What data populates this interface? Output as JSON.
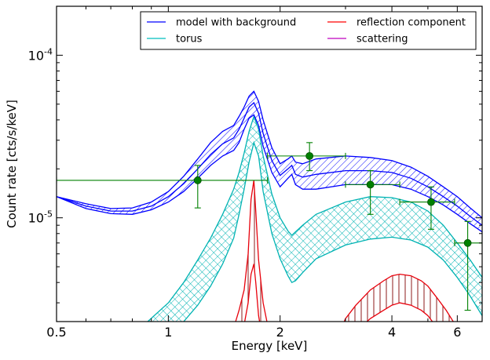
{
  "chart_data": {
    "type": "line",
    "title": "",
    "xlabel": "Energy [keV]",
    "ylabel": "Count rate [cts/s/keV]",
    "xscale": "log",
    "yscale": "log",
    "xlim": [
      0.5,
      7.0
    ],
    "ylim": [
      2.3e-06,
      0.0002
    ],
    "xticks": [
      {
        "value": 0.5,
        "label": "0.5"
      },
      {
        "value": 1,
        "label": "1"
      },
      {
        "value": 2,
        "label": "2"
      },
      {
        "value": 4,
        "label": "4"
      },
      {
        "value": 6,
        "label": "6"
      }
    ],
    "yticks": [
      {
        "value": 1e-05,
        "base": "10",
        "exp": "-5"
      },
      {
        "value": 0.0001,
        "base": "10",
        "exp": "-4"
      }
    ],
    "legend_position": "top-right",
    "legend": [
      {
        "label": "model with background",
        "color": "#0000ff"
      },
      {
        "label": "reflection component",
        "color": "#ff0000"
      },
      {
        "label": "torus",
        "color": "#00bfbf"
      },
      {
        "label": "scattering",
        "color": "#bf00bf"
      }
    ],
    "colors": {
      "model": "#0000ff",
      "torus": "#00b3b3",
      "reflection": "#e8000b",
      "reflection_fill": "#a04040",
      "data": "#008000",
      "scattering": "#bf00bf"
    },
    "series": [
      {
        "name": "model with background",
        "x": [
          0.5,
          0.6,
          0.7,
          0.8,
          0.9,
          1.0,
          1.1,
          1.2,
          1.3,
          1.4,
          1.5,
          1.55,
          1.6,
          1.65,
          1.7,
          1.75,
          1.8,
          1.9,
          2.0,
          2.1,
          2.15,
          2.2,
          2.3,
          2.5,
          3.0,
          3.5,
          4.0,
          4.5,
          5.0,
          5.5,
          6.0,
          6.5,
          7.0
        ],
        "upper": [
          1.35e-05,
          1.22e-05,
          1.14e-05,
          1.15e-05,
          1.25e-05,
          1.45e-05,
          1.8e-05,
          2.3e-05,
          2.9e-05,
          3.4e-05,
          3.7e-05,
          4.2e-05,
          4.8e-05,
          5.6e-05,
          6e-05,
          5.2e-05,
          4e-05,
          2.7e-05,
          2.15e-05,
          2.3e-05,
          2.4e-05,
          2.2e-05,
          2.15e-05,
          2.3e-05,
          2.4e-05,
          2.35e-05,
          2.25e-05,
          2.05e-05,
          1.8e-05,
          1.55e-05,
          1.35e-05,
          1.15e-05,
          1e-05
        ],
        "center": [
          1.35e-05,
          1.18e-05,
          1.1e-05,
          1.1e-05,
          1.18e-05,
          1.35e-05,
          1.62e-05,
          2e-05,
          2.45e-05,
          2.85e-05,
          3.1e-05,
          3.5e-05,
          4.1e-05,
          4.8e-05,
          5.1e-05,
          4.4e-05,
          3.3e-05,
          2.25e-05,
          1.82e-05,
          2e-05,
          2.1e-05,
          1.85e-05,
          1.78e-05,
          1.85e-05,
          1.95e-05,
          1.95e-05,
          1.9e-05,
          1.75e-05,
          1.55e-05,
          1.35e-05,
          1.18e-05,
          1.02e-05,
          9e-06
        ],
        "lower": [
          1.35e-05,
          1.14e-05,
          1.06e-05,
          1.05e-05,
          1.12e-05,
          1.25e-05,
          1.45e-05,
          1.75e-05,
          2.1e-05,
          2.4e-05,
          2.6e-05,
          2.9e-05,
          3.5e-05,
          4.1e-05,
          4.3e-05,
          3.7e-05,
          2.75e-05,
          1.9e-05,
          1.55e-05,
          1.75e-05,
          1.85e-05,
          1.6e-05,
          1.5e-05,
          1.5e-05,
          1.6e-05,
          1.6e-05,
          1.6e-05,
          1.5e-05,
          1.35e-05,
          1.2e-05,
          1.05e-05,
          9.2e-06,
          8.2e-06
        ]
      },
      {
        "name": "torus",
        "x": [
          0.88,
          1.0,
          1.1,
          1.2,
          1.3,
          1.4,
          1.5,
          1.55,
          1.6,
          1.65,
          1.7,
          1.75,
          1.8,
          1.9,
          2.0,
          2.1,
          2.15,
          2.2,
          2.3,
          2.5,
          3.0,
          3.5,
          4.0,
          4.5,
          5.0,
          5.5,
          6.0,
          6.5,
          7.0
        ],
        "upper": [
          2.3e-06,
          3e-06,
          4e-06,
          5.5e-06,
          7.5e-06,
          1.05e-05,
          1.5e-05,
          1.9e-05,
          2.5e-05,
          3.4e-05,
          4.2e-05,
          3.5e-05,
          2.4e-05,
          1.4e-05,
          1e-05,
          8.3e-06,
          7.8e-06,
          8.2e-06,
          9e-06,
          1.05e-05,
          1.25e-05,
          1.35e-05,
          1.33e-05,
          1.25e-05,
          1.1e-05,
          9e-06,
          7e-06,
          5.5e-06,
          4.3e-06
        ],
        "lower": [
          1.6e-06,
          1.9e-06,
          2.3e-06,
          2.9e-06,
          3.8e-06,
          5.2e-06,
          7.5e-06,
          1.05e-05,
          1.5e-05,
          2.2e-05,
          2.9e-05,
          2.4e-05,
          1.45e-05,
          8e-06,
          5.6e-06,
          4.4e-06,
          4e-06,
          4.1e-06,
          4.6e-06,
          5.6e-06,
          6.8e-06,
          7.4e-06,
          7.6e-06,
          7.3e-06,
          6.6e-06,
          5.5e-06,
          4.3e-06,
          3.3e-06,
          2.5e-06
        ]
      },
      {
        "name": "reflection component",
        "x": [
          1.45,
          1.5,
          1.55,
          1.6,
          1.64,
          1.67,
          1.7,
          1.72,
          1.75,
          1.8,
          1.85,
          1.9
        ],
        "upper": [
          1.5e-06,
          2.1e-06,
          2.7e-06,
          3.6e-06,
          6e-06,
          1.3e-05,
          1.7e-05,
          1.1e-05,
          5.5e-06,
          3e-06,
          2.2e-06,
          1.6e-06
        ],
        "lower": [
          1.2e-06,
          1.5e-06,
          1.8e-06,
          2.2e-06,
          3e-06,
          4.5e-06,
          5.2e-06,
          4e-06,
          2.5e-06,
          1.7e-06,
          1.3e-06,
          1.1e-06
        ]
      },
      {
        "name": "reflection component",
        "x": [
          2.9,
          3.0,
          3.2,
          3.5,
          3.8,
          4.0,
          4.2,
          4.5,
          4.8,
          5.0,
          5.3,
          5.6,
          6.0
        ],
        "upper": [
          2e-06,
          2.4e-06,
          2.9e-06,
          3.6e-06,
          4.1e-06,
          4.4e-06,
          4.5e-06,
          4.4e-06,
          4.1e-06,
          3.8e-06,
          3.2e-06,
          2.7e-06,
          2.1e-06
        ],
        "lower": [
          1.5e-06,
          1.7e-06,
          2e-06,
          2.4e-06,
          2.7e-06,
          2.9e-06,
          3e-06,
          2.9e-06,
          2.7e-06,
          2.5e-06,
          2.1e-06,
          1.8e-06,
          1.5e-06
        ]
      }
    ],
    "data_points": [
      {
        "x": 1.2,
        "xlo": 0.5,
        "xhi": 1.85,
        "y": 1.7e-05,
        "ylo": 1.15e-05,
        "yhi": 2.1e-05
      },
      {
        "x": 2.4,
        "xlo": 1.85,
        "xhi": 3.0,
        "y": 2.4e-05,
        "ylo": 1.95e-05,
        "yhi": 2.9e-05
      },
      {
        "x": 3.5,
        "xlo": 3.0,
        "xhi": 4.2,
        "y": 1.6e-05,
        "ylo": 1.05e-05,
        "yhi": 1.95e-05
      },
      {
        "x": 5.1,
        "xlo": 4.2,
        "xhi": 5.9,
        "y": 1.25e-05,
        "ylo": 8.5e-06,
        "yhi": 1.55e-05
      },
      {
        "x": 6.4,
        "xlo": 5.9,
        "xhi": 7.0,
        "y": 7e-06,
        "ylo": 2.7e-06,
        "yhi": 9.5e-06
      }
    ]
  }
}
